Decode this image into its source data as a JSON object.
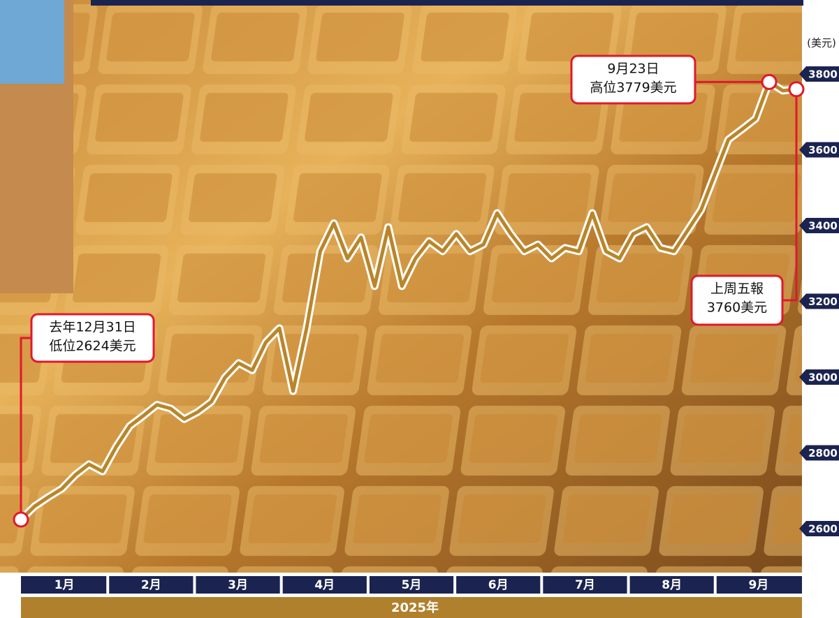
{
  "chart_data": {
    "type": "line",
    "unit_label": "(美元)",
    "x_labels": [
      "1月",
      "2月",
      "3月",
      "4月",
      "5月",
      "6月",
      "7月",
      "8月",
      "9月"
    ],
    "x_axis_title": "2025年",
    "ylim": [
      2600,
      3800
    ],
    "yticks": [
      2600,
      2800,
      3000,
      3200,
      3400,
      3600,
      3800
    ],
    "series": [
      {
        "color": "#b8862b",
        "values": [
          2624,
          2659,
          2683,
          2705,
          2742,
          2770,
          2751,
          2816,
          2871,
          2898,
          2927,
          2917,
          2889,
          2908,
          2935,
          2999,
          3037,
          3018,
          3092,
          3129,
          2963,
          3129,
          3332,
          3406,
          3313,
          3369,
          3240,
          3396,
          3240,
          3313,
          3359,
          3332,
          3378,
          3332,
          3350,
          3433,
          3378,
          3332,
          3350,
          3313,
          3341,
          3332,
          3433,
          3332,
          3313,
          3378,
          3396,
          3341,
          3332,
          3387,
          3442,
          3535,
          3627,
          3654,
          3682,
          3779,
          3756,
          3760
        ]
      }
    ],
    "annotations": [
      {
        "lines": [
          "去年12月31日",
          "低位2624美元"
        ]
      },
      {
        "lines": [
          "9月23日",
          "高位3779美元"
        ]
      },
      {
        "lines": [
          "上周五報",
          "3760美元"
        ]
      }
    ]
  }
}
